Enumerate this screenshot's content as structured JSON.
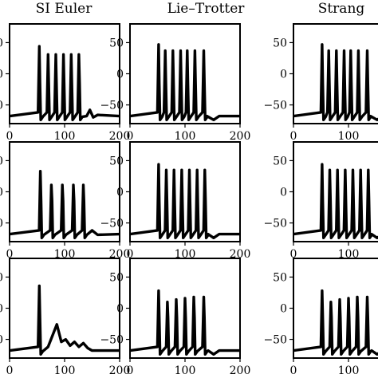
{
  "chart_data": {
    "type": "line",
    "layout": "3x3 grid (rows of panels, columns = methods); right column partially cropped",
    "column_titles": [
      "SI Euler",
      "Lie–Trotter",
      "Strang"
    ],
    "xlim": [
      0,
      200
    ],
    "ylim": [
      -80,
      80
    ],
    "x_ticks": [
      0,
      100,
      200
    ],
    "x_tick_labels": [
      "0",
      "100",
      "200"
    ],
    "y_ticks": [
      50,
      0,
      -50
    ],
    "y_tick_labels": [
      "50",
      "0",
      "−50"
    ],
    "y_tick_labels_left_column_visible": [
      "0",
      "0",
      "0"
    ],
    "grid": false,
    "legend": "none",
    "line_color": "#000000",
    "baseline_mV": -68,
    "panels": [
      {
        "row": 0,
        "col": 0,
        "baseline": -68,
        "spike_times": [
          54,
          70,
          84,
          98,
          112,
          126
        ],
        "spike_peaks": [
          44,
          31,
          31,
          31,
          31,
          31
        ],
        "tail": {
          "x": [
            140,
            146,
            152,
            160,
            200
          ],
          "y": [
            -68,
            -58,
            -70,
            -66,
            -68
          ]
        }
      },
      {
        "row": 0,
        "col": 1,
        "baseline": -68,
        "spike_times": [
          52,
          64,
          78,
          92,
          104,
          118,
          134
        ],
        "spike_peaks": [
          47,
          37,
          37,
          37,
          37,
          37,
          37
        ],
        "tail": {
          "x": [
            140,
            152,
            162,
            200
          ],
          "y": [
            -68,
            -74,
            -68,
            -68
          ]
        }
      },
      {
        "row": 0,
        "col": 2,
        "baseline": -68,
        "spike_times": [
          52,
          64,
          78,
          92,
          104,
          118,
          134
        ],
        "spike_peaks": [
          47,
          37,
          37,
          37,
          37,
          37,
          37
        ],
        "tail": {
          "x": [
            140,
            152,
            162,
            200
          ],
          "y": [
            -68,
            -74,
            -68,
            -68
          ]
        }
      },
      {
        "row": 1,
        "col": 0,
        "baseline": -68,
        "spike_times": [
          56,
          76,
          96,
          116,
          134
        ],
        "spike_peaks": [
          33,
          11,
          11,
          11,
          11
        ],
        "tail": {
          "x": [
            142,
            150,
            160,
            200
          ],
          "y": [
            -68,
            -62,
            -69,
            -68
          ]
        }
      },
      {
        "row": 1,
        "col": 1,
        "baseline": -68,
        "spike_times": [
          52,
          66,
          80,
          94,
          108,
          122,
          136
        ],
        "spike_peaks": [
          44,
          35,
          35,
          35,
          35,
          35,
          35
        ],
        "tail": {
          "x": [
            142,
            152,
            162,
            200
          ],
          "y": [
            -68,
            -74,
            -68,
            -68
          ]
        }
      },
      {
        "row": 1,
        "col": 2,
        "baseline": -68,
        "spike_times": [
          52,
          66,
          80,
          94,
          108,
          122,
          136
        ],
        "spike_peaks": [
          44,
          35,
          35,
          35,
          35,
          35,
          35
        ],
        "tail": {
          "x": [
            142,
            152,
            162,
            200
          ],
          "y": [
            -68,
            -74,
            -68,
            -68
          ]
        }
      },
      {
        "row": 2,
        "col": 0,
        "baseline": -68,
        "spike_times": [
          54
        ],
        "spike_peaks": [
          36
        ],
        "tail": {
          "x": [
            62,
            70,
            78,
            86,
            94,
            102,
            110,
            118,
            126,
            134,
            142,
            150,
            160,
            200
          ],
          "y": [
            -68,
            -62,
            -44,
            -26,
            -54,
            -50,
            -60,
            -54,
            -62,
            -56,
            -64,
            -68,
            -68,
            -68
          ]
        }
      },
      {
        "row": 2,
        "col": 1,
        "baseline": -68,
        "spike_times": [
          52,
          68,
          84,
          100,
          116,
          134
        ],
        "spike_peaks": [
          28,
          10,
          14,
          16,
          18,
          18
        ],
        "tail": {
          "x": [
            142,
            152,
            162,
            200
          ],
          "y": [
            -68,
            -74,
            -68,
            -68
          ]
        }
      },
      {
        "row": 2,
        "col": 2,
        "baseline": -68,
        "spike_times": [
          52,
          68,
          84,
          100,
          116,
          134
        ],
        "spike_peaks": [
          28,
          10,
          14,
          16,
          18,
          18
        ],
        "tail": {
          "x": [
            142,
            152,
            162,
            200
          ],
          "y": [
            -68,
            -74,
            -68,
            -68
          ]
        }
      }
    ]
  }
}
